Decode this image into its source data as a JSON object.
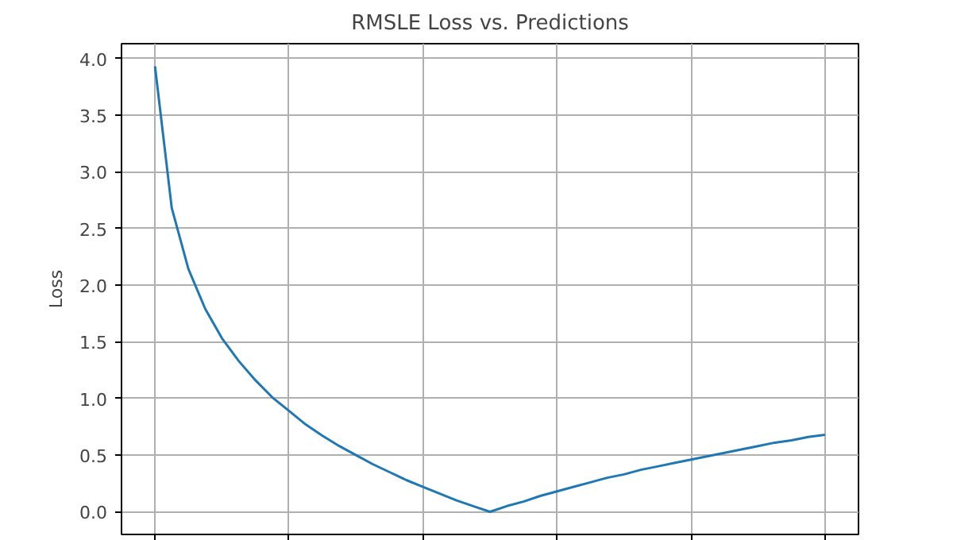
{
  "chart_data": {
    "type": "line",
    "title": "RMSLE Loss vs. Predictions",
    "ylabel": "Loss",
    "categories": [
      null,
      null,
      null,
      null,
      null,
      null,
      null,
      null,
      null,
      null,
      null,
      null,
      null,
      null,
      null,
      null,
      null,
      null,
      null,
      null,
      null,
      null,
      null,
      null,
      null,
      null,
      null,
      null,
      null,
      null,
      null,
      null,
      null,
      null,
      null,
      null,
      null,
      null,
      null,
      null,
      null
    ],
    "series": [
      {
        "color": "#1f77b4",
        "values": [
          3.93,
          2.68,
          2.14,
          1.79,
          1.53,
          1.33,
          1.16,
          1.01,
          0.89,
          0.77,
          0.67,
          0.58,
          0.5,
          0.42,
          0.35,
          0.28,
          0.22,
          0.16,
          0.1,
          0.05,
          0,
          0.05,
          0.09,
          0.14,
          0.18,
          0.22,
          0.26,
          0.3,
          0.33,
          0.37,
          0.4,
          0.43,
          0.46,
          0.49,
          0.52,
          0.55,
          0.58,
          0.61,
          0.63,
          0.66,
          0.68
        ]
      }
    ],
    "ylim": [
      -0.2,
      4.13
    ],
    "yticks": [
      {
        "value": 0,
        "label": "0.0"
      },
      {
        "value": 0.5,
        "label": "0.5"
      },
      {
        "value": 1,
        "label": "1.0"
      },
      {
        "value": 1.5,
        "label": "1.5"
      },
      {
        "value": 2,
        "label": "2.0"
      },
      {
        "value": 2.5,
        "label": "2.5"
      },
      {
        "value": 3,
        "label": "3.0"
      },
      {
        "value": 3.5,
        "label": "3.5"
      },
      {
        "value": 4,
        "label": "4.0"
      }
    ],
    "tick_labels": "y",
    "grid": true
  }
}
